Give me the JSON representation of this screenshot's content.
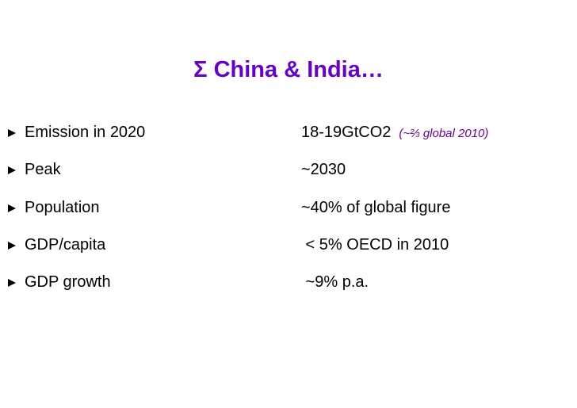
{
  "slide": {
    "title": "Σ China & India…",
    "title_color": "#6600cc",
    "bullet_icon": "square-bullet",
    "rows": [
      {
        "label": "Emission in 2020",
        "value": "18-19GtCO2",
        "note": "(~⅔ global 2010)"
      },
      {
        "label": "Peak",
        "value": "~2030"
      },
      {
        "label": "Population",
        "value": "~40% of global figure"
      },
      {
        "label": "GDP/capita",
        "value": " < 5% OECD in 2010"
      },
      {
        "label": "GDP growth",
        "value": " ~9% p.a."
      }
    ]
  }
}
